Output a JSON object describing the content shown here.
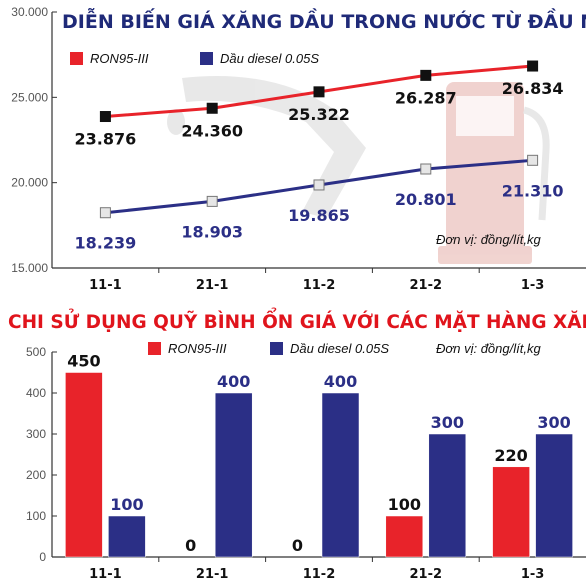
{
  "colors": {
    "ron": "#e8232a",
    "diesel": "#2b2f86",
    "title_top": "#1f2a78",
    "title_bottom": "#e0141c"
  },
  "chart_data": [
    {
      "type": "line",
      "title": "DIỄN BIẾN GIÁ XĂNG DẦU TRONG NƯỚC TỪ ĐẦU NĂM NAY",
      "unit": "Đơn vị: đồng/lít,kg",
      "categories": [
        "11-1",
        "21-1",
        "11-2",
        "21-2",
        "1-3"
      ],
      "yticks": [
        "15.000",
        "20.000",
        "25.000",
        "30.000"
      ],
      "ylim": [
        15000,
        30000
      ],
      "series": [
        {
          "name": "RON95-III",
          "values": [
            23876,
            24360,
            25322,
            26287,
            26834
          ],
          "labels": [
            "23.876",
            "24.360",
            "25.322",
            "26.287",
            "26.834"
          ]
        },
        {
          "name": "Dầu diesel 0.05S",
          "values": [
            18239,
            18903,
            19865,
            20801,
            21310
          ],
          "labels": [
            "18.239",
            "18.903",
            "19.865",
            "20.801",
            "21.310"
          ]
        }
      ]
    },
    {
      "type": "bar",
      "title": "CHI SỬ DỤNG QUỸ BÌNH ỔN GIÁ VỚI CÁC MẶT HÀNG XĂNG DẦU",
      "unit": "Đơn vị: đồng/lít,kg",
      "categories": [
        "11-1",
        "21-1",
        "11-2",
        "21-2",
        "1-3"
      ],
      "yticks": [
        "0",
        "100",
        "200",
        "300",
        "400",
        "500"
      ],
      "ylim": [
        0,
        500
      ],
      "series": [
        {
          "name": "RON95-III",
          "values": [
            450,
            0,
            0,
            100,
            220
          ],
          "labels": [
            "450",
            "0",
            "0",
            "100",
            "220"
          ]
        },
        {
          "name": "Dầu diesel 0.05S",
          "values": [
            100,
            400,
            400,
            300,
            300
          ],
          "labels": [
            "100",
            "400",
            "400",
            "300",
            "300"
          ]
        }
      ]
    }
  ]
}
